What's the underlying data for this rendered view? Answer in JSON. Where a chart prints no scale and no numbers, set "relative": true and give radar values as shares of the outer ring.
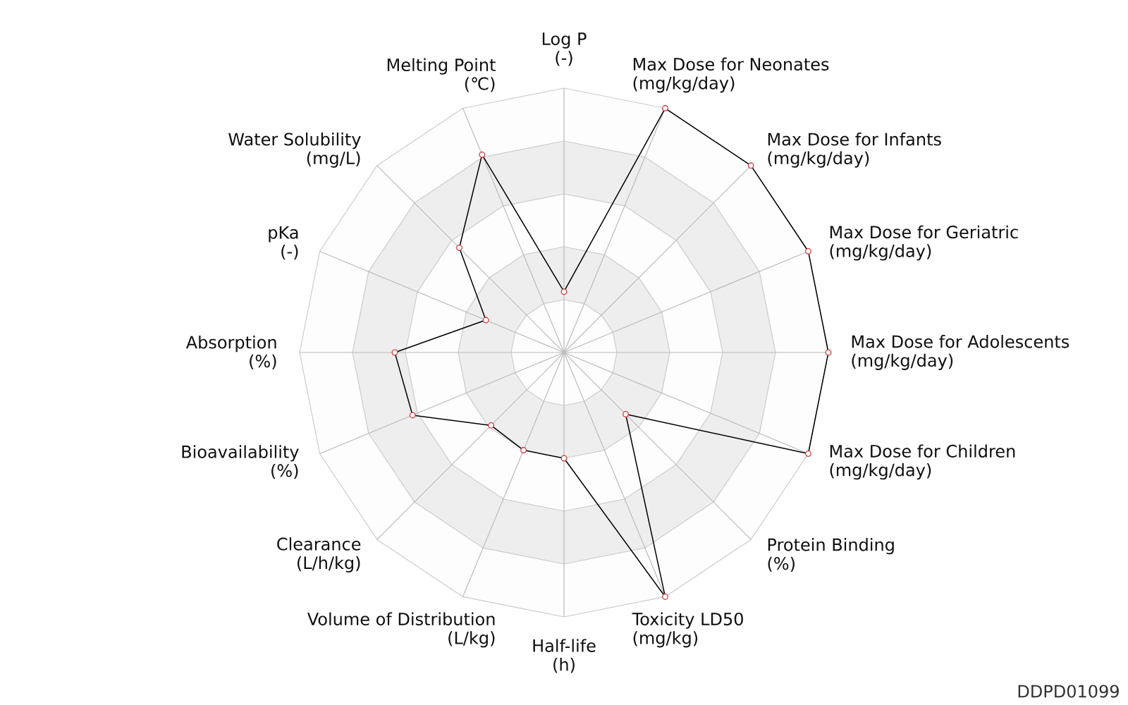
{
  "chart_data": {
    "type": "radar",
    "relative": true,
    "grid": true,
    "marker": "circle",
    "categories": [
      "Log P\n(-)",
      "Max Dose for Neonates\n(mg/kg/day)",
      "Max Dose for Infants\n(mg/kg/day)",
      "Max Dose for Geriatric\n(mg/kg/day)",
      "Max Dose for Adolescents\n(mg/kg/day)",
      "Max Dose for Children\n(mg/kg/day)",
      "Protein Binding\n(%)",
      "Toxicity LD50\n(mg/kg)",
      "Half-life\n(h)",
      "Volume of Distribution\n(L/kg)",
      "Clearance\n(L/h/kg)",
      "Bioavailability\n(%)",
      "Absorption\n(%)",
      "pKa\n(-)",
      "Water Solubility\n(mg/L)",
      "Melting Point\n(℃)"
    ],
    "series": [
      {
        "color": "#000000",
        "values": [
          0.23,
          1,
          1,
          1,
          1,
          1,
          0.33,
          1,
          0.4,
          0.4,
          0.39,
          0.62,
          0.64,
          0.32,
          0.56,
          0.81
        ]
      }
    ],
    "annotations": [
      "DDPD01099"
    ]
  }
}
